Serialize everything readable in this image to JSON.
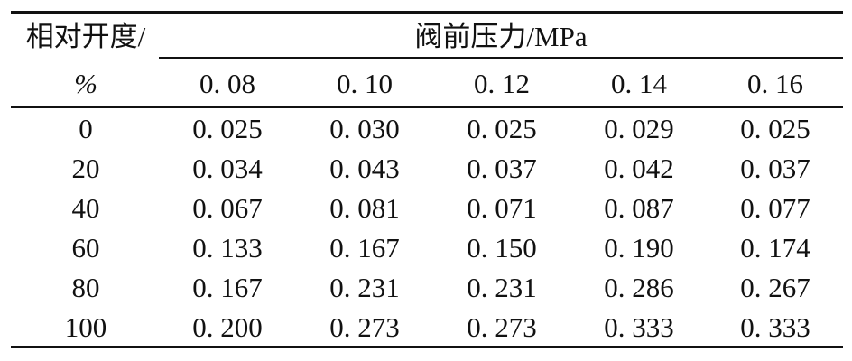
{
  "table": {
    "row_header_line1": "相对开度/",
    "row_header_line2": "%",
    "group_header": "阀前压力/MPa",
    "columns": [
      "0. 08",
      "0. 10",
      "0. 12",
      "0. 14",
      "0. 16"
    ],
    "rows": [
      {
        "label": "0",
        "values": [
          "0. 025",
          "0. 030",
          "0. 025",
          "0. 029",
          "0. 025"
        ]
      },
      {
        "label": "20",
        "values": [
          "0. 034",
          "0. 043",
          "0. 037",
          "0. 042",
          "0. 037"
        ]
      },
      {
        "label": "40",
        "values": [
          "0. 067",
          "0. 081",
          "0. 071",
          "0. 087",
          "0. 077"
        ]
      },
      {
        "label": "60",
        "values": [
          "0. 133",
          "0. 167",
          "0. 150",
          "0. 190",
          "0. 174"
        ]
      },
      {
        "label": "80",
        "values": [
          "0. 167",
          "0. 231",
          "0. 231",
          "0. 286",
          "0. 267"
        ]
      },
      {
        "label": "100",
        "values": [
          "0. 200",
          "0. 273",
          "0. 273",
          "0. 333",
          "0. 333"
        ]
      }
    ]
  }
}
